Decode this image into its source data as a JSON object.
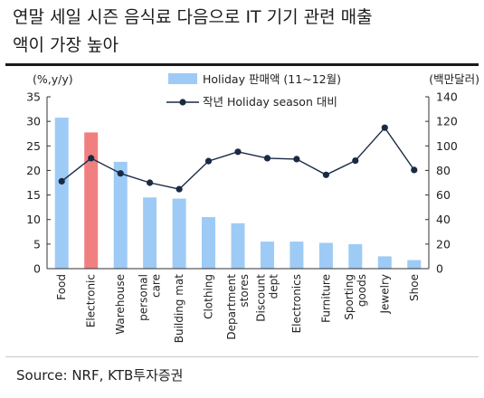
{
  "header": {
    "title_line1": "연말 세일 시즌 음식료 다음으로 IT 기기 관련 매출",
    "title_line2": "액이 가장 높아"
  },
  "source": "Source: NRF, KTB투자증권",
  "colors": {
    "bar": "#9dcbf5",
    "highlight_bar": "#f08080",
    "line": "#1a2a44"
  },
  "chart_data": {
    "type": "bar",
    "categories": [
      "Food",
      "Electronic",
      "Warehouse",
      "personal care",
      "Building mat",
      "Clothing",
      "Department stores",
      "Discount dept",
      "Electronics",
      "Furniture",
      "Sporting goods",
      "Jewelry",
      "Shoe"
    ],
    "category_labels": [
      [
        "Food"
      ],
      [
        "Electronic"
      ],
      [
        "Warehouse"
      ],
      [
        "personal",
        "care"
      ],
      [
        "Building mat"
      ],
      [
        "Clothing"
      ],
      [
        "Department",
        "stores"
      ],
      [
        "Discount",
        "dept"
      ],
      [
        "Electronics"
      ],
      [
        "Furniture"
      ],
      [
        "Sporting",
        "goods"
      ],
      [
        "Jewelry"
      ],
      [
        "Shoe"
      ]
    ],
    "series": [
      {
        "name": "Holiday 판매액 (11~12월)",
        "type": "bar",
        "axis": "right",
        "values": [
          123,
          111,
          87,
          58,
          57,
          42,
          37,
          22,
          22,
          21,
          20,
          10,
          7
        ]
      },
      {
        "name": "작년 Holiday season 대비",
        "type": "line",
        "axis": "left",
        "values": [
          17.8,
          22.5,
          19.4,
          17.5,
          16.2,
          21.9,
          23.8,
          22.5,
          22.3,
          19.1,
          22.0,
          28.7,
          20.1
        ]
      }
    ],
    "highlight_index": 1,
    "left_axis": {
      "label": "(%,y/y)",
      "min": 0,
      "max": 35,
      "ticks": [
        "0",
        "5",
        "10",
        "15",
        "20",
        "25",
        "30",
        "35"
      ]
    },
    "right_axis": {
      "label": "(백만달러)",
      "min": 0,
      "max": 140,
      "ticks": [
        "0",
        "20",
        "40",
        "60",
        "80",
        "100",
        "120",
        "140"
      ]
    },
    "legend_position": "top-center",
    "grid": false
  }
}
